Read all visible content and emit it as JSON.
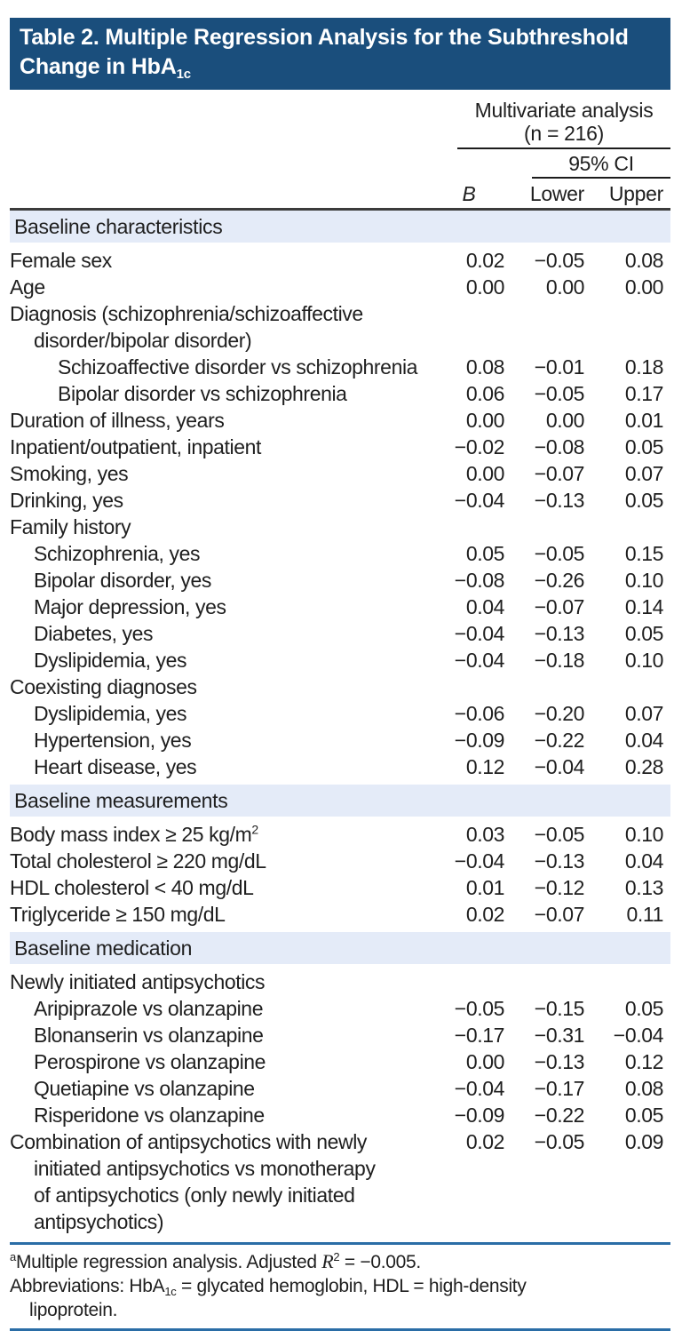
{
  "colors": {
    "banner_bg": "#1a4e7c",
    "banner_text": "#ffffff",
    "section_band_bg": "#e4ebf8",
    "body_text": "#1f1f1f",
    "header_rule": "#1c1c1c",
    "thick_rule": "#3c3c3c",
    "footer_rule_blue": "#2a6da6"
  },
  "title": {
    "line1": "Table 2. Multiple Regression Analysis for the Subthreshold",
    "line2_prefix": "Change in HbA",
    "line2_sub": "1c"
  },
  "header": {
    "group_label": "Multivariate analysis",
    "group_n": "(n = 216)",
    "ci_label": "95% CI",
    "col_b": "B",
    "col_lower": "Lower",
    "col_upper": "Upper"
  },
  "table": {
    "rows": [
      {
        "type": "section",
        "label": "Baseline characteristics"
      },
      {
        "label": "Female sex",
        "indent": 0,
        "b": "0.02",
        "lower": "−0.05",
        "upper": "0.08"
      },
      {
        "label": "Age",
        "indent": 0,
        "b": "0.00",
        "lower": "0.00",
        "upper": "0.00"
      },
      {
        "label": "Diagnosis (schizophrenia/schizoaffective",
        "indent": 0,
        "b": "",
        "lower": "",
        "upper": ""
      },
      {
        "label": "disorder/bipolar disorder)",
        "indent": 1,
        "b": "",
        "lower": "",
        "upper": ""
      },
      {
        "label": "Schizoaffective disorder vs schizophrenia",
        "indent": 2,
        "b": "0.08",
        "lower": "−0.01",
        "upper": "0.18"
      },
      {
        "label": "Bipolar disorder vs schizophrenia",
        "indent": 2,
        "b": "0.06",
        "lower": "−0.05",
        "upper": "0.17"
      },
      {
        "label": "Duration of illness, years",
        "indent": 0,
        "b": "0.00",
        "lower": "0.00",
        "upper": "0.01"
      },
      {
        "label": "Inpatient/outpatient, inpatient",
        "indent": 0,
        "b": "−0.02",
        "lower": "−0.08",
        "upper": "0.05"
      },
      {
        "label": "Smoking, yes",
        "indent": 0,
        "b": "0.00",
        "lower": "−0.07",
        "upper": "0.07"
      },
      {
        "label": "Drinking, yes",
        "indent": 0,
        "b": "−0.04",
        "lower": "−0.13",
        "upper": "0.05"
      },
      {
        "label": "Family history",
        "indent": 0,
        "b": "",
        "lower": "",
        "upper": ""
      },
      {
        "label": "Schizophrenia, yes",
        "indent": 1,
        "b": "0.05",
        "lower": "−0.05",
        "upper": "0.15"
      },
      {
        "label": "Bipolar disorder, yes",
        "indent": 1,
        "b": "−0.08",
        "lower": "−0.26",
        "upper": "0.10"
      },
      {
        "label": "Major depression, yes",
        "indent": 1,
        "b": "0.04",
        "lower": "−0.07",
        "upper": "0.14"
      },
      {
        "label": "Diabetes, yes",
        "indent": 1,
        "b": "−0.04",
        "lower": "−0.13",
        "upper": "0.05"
      },
      {
        "label": "Dyslipidemia, yes",
        "indent": 1,
        "b": "−0.04",
        "lower": "−0.18",
        "upper": "0.10"
      },
      {
        "label": "Coexisting diagnoses",
        "indent": 0,
        "b": "",
        "lower": "",
        "upper": ""
      },
      {
        "label": "Dyslipidemia, yes",
        "indent": 1,
        "b": "−0.06",
        "lower": "−0.20",
        "upper": "0.07"
      },
      {
        "label": "Hypertension, yes",
        "indent": 1,
        "b": "−0.09",
        "lower": "−0.22",
        "upper": "0.04"
      },
      {
        "label": "Heart disease, yes",
        "indent": 1,
        "b": "0.12",
        "lower": "−0.04",
        "upper": "0.28"
      },
      {
        "type": "section",
        "label": "Baseline measurements"
      },
      {
        "label": "Body mass index ≥ 25 kg/m",
        "label_sup": "2",
        "indent": 0,
        "b": "0.03",
        "lower": "−0.05",
        "upper": "0.10"
      },
      {
        "label": "Total cholesterol ≥ 220 mg/dL",
        "indent": 0,
        "b": "−0.04",
        "lower": "−0.13",
        "upper": "0.04"
      },
      {
        "label": "HDL cholesterol < 40 mg/dL",
        "indent": 0,
        "b": "0.01",
        "lower": "−0.12",
        "upper": "0.13"
      },
      {
        "label": "Triglyceride ≥ 150 mg/dL",
        "indent": 0,
        "b": "0.02",
        "lower": "−0.07",
        "upper": "0.11"
      },
      {
        "type": "section",
        "label": "Baseline medication"
      },
      {
        "label": "Newly initiated antipsychotics",
        "indent": 0,
        "b": "",
        "lower": "",
        "upper": ""
      },
      {
        "label": "Aripiprazole vs olanzapine",
        "indent": 1,
        "b": "−0.05",
        "lower": "−0.15",
        "upper": "0.05"
      },
      {
        "label": "Blonanserin vs olanzapine",
        "indent": 1,
        "b": "−0.17",
        "lower": "−0.31",
        "upper": "−0.04"
      },
      {
        "label": "Perospirone vs olanzapine",
        "indent": 1,
        "b": "0.00",
        "lower": "−0.13",
        "upper": "0.12"
      },
      {
        "label": "Quetiapine vs olanzapine",
        "indent": 1,
        "b": "−0.04",
        "lower": "−0.17",
        "upper": "0.08"
      },
      {
        "label": "Risperidone vs olanzapine",
        "indent": 1,
        "b": "−0.09",
        "lower": "−0.22",
        "upper": "0.05"
      },
      {
        "label": "Combination of antipsychotics with newly",
        "indent": 0,
        "b": "0.02",
        "lower": "−0.05",
        "upper": "0.09"
      },
      {
        "label": "initiated antipsychotics vs monotherapy",
        "indent": 1,
        "b": "",
        "lower": "",
        "upper": ""
      },
      {
        "label": "of antipsychotics (only newly initiated",
        "indent": 1,
        "b": "",
        "lower": "",
        "upper": ""
      },
      {
        "label": "antipsychotics)",
        "indent": 1,
        "b": "",
        "lower": "",
        "upper": ""
      }
    ]
  },
  "footnotes": {
    "note1": {
      "sup": "a",
      "pre": "Multiple regression analysis. Adjusted ",
      "r": "R",
      "r_sup": "2",
      "post": " = −0.005."
    },
    "note2": {
      "pre": "Abbreviations: HbA",
      "sub": "1c",
      "post": " = glycated hemoglobin, HDL = high-density lipoprotein."
    }
  }
}
